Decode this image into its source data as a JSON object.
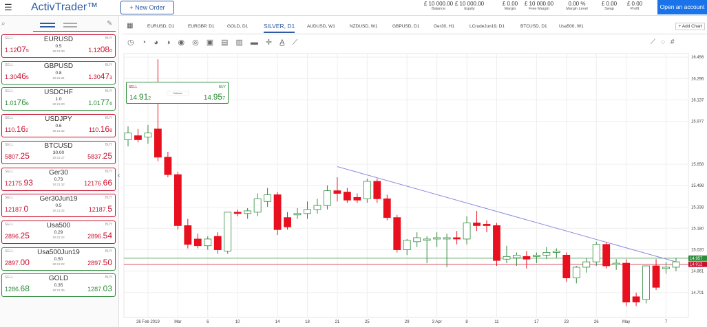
{
  "header": {
    "logo": "ActivTrader™",
    "new_order": "New Order",
    "open_account": "Open an account",
    "stats": [
      {
        "value": "£ 10 000.00",
        "label": "Balance"
      },
      {
        "value": "£ 10 000.00",
        "label": "Equity"
      },
      {
        "value": "£ 0.00",
        "label": "Margin"
      },
      {
        "value": "£ 10 000.00",
        "label": "Free Margin"
      },
      {
        "value": "0.00 %",
        "label": "Margin Level"
      },
      {
        "value": "£ 0.00",
        "label": "Swap"
      },
      {
        "value": "£ 0.00",
        "label": "Profit"
      }
    ]
  },
  "watchlist": {
    "sell_label": "SELL",
    "buy_label": "BUY",
    "items": [
      {
        "name": "EURUSD",
        "color": "#c8102e",
        "border": "#c8102e",
        "sell": [
          "1.12",
          "07",
          "5"
        ],
        "spread": "0.5",
        "time": "10:21:30",
        "buy": [
          "1.12",
          "08",
          "0"
        ]
      },
      {
        "name": "GBPUSD",
        "color": "#c8102e",
        "border": "#2e8b3a",
        "sell": [
          "1.30",
          "46",
          "5"
        ],
        "spread": "0.8",
        "time": "10:21:31",
        "buy": [
          "1.30",
          "47",
          "3"
        ]
      },
      {
        "name": "USDCHF",
        "color": "#2e8b3a",
        "border": "#2e8b3a",
        "sell": [
          "1.01",
          "76",
          "6"
        ],
        "spread": "1.0",
        "time": "10:21:30",
        "buy": [
          "1.01",
          "77",
          "6"
        ]
      },
      {
        "name": "USDJPY",
        "color": "#c8102e",
        "border": "#c8102e",
        "sell": [
          "110.",
          "16",
          "2"
        ],
        "spread": "0.6",
        "time": "10:21:32",
        "buy": [
          "110.",
          "16",
          "8"
        ]
      },
      {
        "name": "BTCUSD",
        "color": "#c8102e",
        "border": "#c8102e",
        "sell": [
          "5807.",
          "25"
        ],
        "spread": "30.00",
        "time": "10:21:17",
        "buy": [
          "5837.",
          "25"
        ]
      },
      {
        "name": "Ger30",
        "color": "#c8102e",
        "border": "#c8102e",
        "sell": [
          "12175.",
          "93"
        ],
        "spread": "0.73",
        "time": "10:21:32",
        "buy": [
          "12176.",
          "66"
        ]
      },
      {
        "name": "Ger30Jun19",
        "color": "#c8102e",
        "border": "#c8102e",
        "sell": [
          "12187.",
          "0"
        ],
        "spread": "0.5",
        "time": "10:21:32",
        "buy": [
          "12187.",
          "5"
        ]
      },
      {
        "name": "Usa500",
        "color": "#c8102e",
        "border": "#c8102e",
        "sell": [
          "2896.",
          "25"
        ],
        "spread": "0.29",
        "time": "10:21:22",
        "buy": [
          "2896.",
          "54"
        ]
      },
      {
        "name": "Usa500Jun19",
        "color": "#c8102e",
        "border": "#2e8b3a",
        "sell": [
          "2897.",
          "00"
        ],
        "spread": "0.50",
        "time": "10:21:22",
        "buy": [
          "2897.",
          "50"
        ]
      },
      {
        "name": "GOLD",
        "color": "#2e8b3a",
        "border": "#2e8b3a",
        "sell": [
          "1286.",
          "68"
        ],
        "spread": "0.35",
        "time": "10:21:35",
        "buy": [
          "1287.",
          "03"
        ]
      }
    ]
  },
  "tabs": [
    "EURUSD, D1",
    "EURGBP, D1",
    "GOLD, D1",
    "SILVER, D1",
    "AUDUSD, W1",
    "NZDUSD, W1",
    "GBPUSD, D1",
    "Ger30, H1",
    "LCrudeJun19, D1",
    "BTCUSD, D1",
    "Usa500, W1"
  ],
  "active_tab": "SILVER, D1",
  "add_chart": "+ Add Chart",
  "trade_widget": {
    "sell_label": "SELL",
    "buy_label": "BUY",
    "volume": "Volume",
    "sell": [
      "14.",
      "91",
      "2"
    ],
    "buy": [
      "14.",
      "95",
      "7"
    ]
  },
  "chart_data": {
    "type": "candlestick",
    "up_color": "#2e8b3a",
    "down_color": "#e8101e",
    "ylim": [
      14.516,
      16.482
    ],
    "yticks": [
      16.456,
      16.296,
      16.137,
      15.977,
      15.658,
      15.498,
      15.338,
      {
        "value": 15.18,
        "label": "15.180"
      },
      {
        "value": 15.02,
        "label": "15.020"
      },
      14.861,
      14.701
    ],
    "bid": 14.912,
    "ask": 14.957,
    "bid_color": "#c8102e",
    "ask_color": "#2e8b3a",
    "trendline": [
      15.64,
      14.93
    ],
    "categories": [
      null,
      null,
      "26 Feb 2019",
      null,
      null,
      "Mar",
      null,
      null,
      "6",
      null,
      null,
      "10",
      null,
      null,
      null,
      "14",
      null,
      null,
      "18",
      null,
      null,
      "21",
      null,
      null,
      "25",
      null,
      null,
      null,
      "29",
      null,
      null,
      "3 Apr",
      null,
      null,
      "8",
      null,
      null,
      "11",
      null,
      null,
      null,
      "17",
      null,
      null,
      "23",
      null,
      null,
      "26",
      null,
      null,
      "May",
      null,
      null,
      null,
      "7",
      null
    ],
    "candles": [
      [
        15.84,
        15.94,
        15.79,
        15.89
      ],
      [
        15.87,
        15.92,
        15.82,
        15.84
      ],
      [
        15.86,
        15.95,
        15.81,
        15.89
      ],
      [
        15.92,
        16.44,
        15.68,
        15.71
      ],
      [
        15.71,
        15.75,
        15.56,
        15.58
      ],
      [
        15.58,
        15.6,
        15.17,
        15.2
      ],
      [
        15.2,
        15.25,
        15.03,
        15.06
      ],
      [
        15.1,
        15.14,
        15.03,
        15.05
      ],
      [
        15.05,
        15.12,
        15.02,
        15.1
      ],
      [
        15.12,
        15.15,
        14.99,
        15.02
      ],
      [
        15.01,
        15.3,
        14.99,
        15.3
      ],
      [
        15.3,
        15.32,
        15.27,
        15.29
      ],
      [
        15.29,
        15.33,
        15.25,
        15.31
      ],
      [
        15.3,
        15.44,
        15.27,
        15.4
      ],
      [
        15.38,
        15.48,
        15.34,
        15.43
      ],
      [
        15.43,
        15.45,
        15.13,
        15.17
      ],
      [
        15.26,
        15.3,
        15.17,
        15.19
      ],
      [
        15.28,
        15.33,
        15.25,
        15.29
      ],
      [
        15.29,
        15.38,
        15.25,
        15.32
      ],
      [
        15.32,
        15.4,
        15.29,
        15.35
      ],
      [
        15.35,
        15.5,
        15.32,
        15.46
      ],
      [
        15.46,
        15.56,
        15.38,
        15.44
      ],
      [
        15.45,
        15.48,
        15.37,
        15.39
      ],
      [
        15.41,
        15.44,
        15.37,
        15.39
      ],
      [
        15.4,
        15.55,
        15.37,
        15.53
      ],
      [
        15.53,
        15.55,
        15.37,
        15.4
      ],
      [
        15.4,
        15.43,
        15.24,
        15.26
      ],
      [
        15.26,
        15.28,
        15.0,
        15.02
      ],
      [
        15.02,
        15.1,
        14.98,
        15.09
      ],
      [
        15.08,
        15.15,
        15.04,
        15.11
      ],
      [
        15.09,
        15.12,
        14.92,
        15.1
      ],
      [
        15.1,
        15.15,
        15.04,
        15.11
      ],
      [
        15.1,
        15.14,
        14.89,
        15.11
      ],
      [
        15.11,
        15.16,
        15.06,
        15.1
      ],
      [
        15.1,
        15.27,
        15.06,
        15.22
      ],
      [
        15.22,
        15.31,
        15.16,
        15.2
      ],
      [
        15.21,
        15.24,
        15.15,
        15.2
      ],
      [
        15.2,
        15.22,
        14.9,
        14.94
      ],
      [
        14.95,
        15.05,
        14.92,
        14.97
      ],
      [
        14.96,
        15.0,
        14.9,
        14.98
      ],
      [
        14.97,
        15.01,
        14.88,
        14.95
      ],
      [
        14.97,
        15.0,
        14.92,
        14.98
      ],
      [
        14.98,
        15.04,
        14.95,
        15.0
      ],
      [
        15.0,
        15.03,
        14.96,
        15.01
      ],
      [
        14.98,
        15.0,
        14.78,
        14.81
      ],
      [
        14.81,
        14.9,
        14.77,
        14.89
      ],
      [
        14.89,
        14.96,
        14.85,
        14.93
      ],
      [
        14.93,
        15.08,
        14.9,
        15.06
      ],
      [
        15.06,
        15.08,
        14.88,
        14.9
      ],
      [
        14.91,
        14.95,
        14.87,
        14.92
      ],
      [
        14.92,
        14.95,
        14.6,
        14.63
      ],
      [
        14.67,
        14.7,
        14.6,
        14.63
      ],
      [
        14.65,
        14.9,
        14.62,
        14.9
      ],
      [
        14.9,
        14.95,
        14.72,
        14.74
      ],
      [
        14.88,
        14.93,
        14.84,
        14.89
      ],
      [
        14.89,
        14.96,
        14.86,
        14.93
      ]
    ]
  }
}
